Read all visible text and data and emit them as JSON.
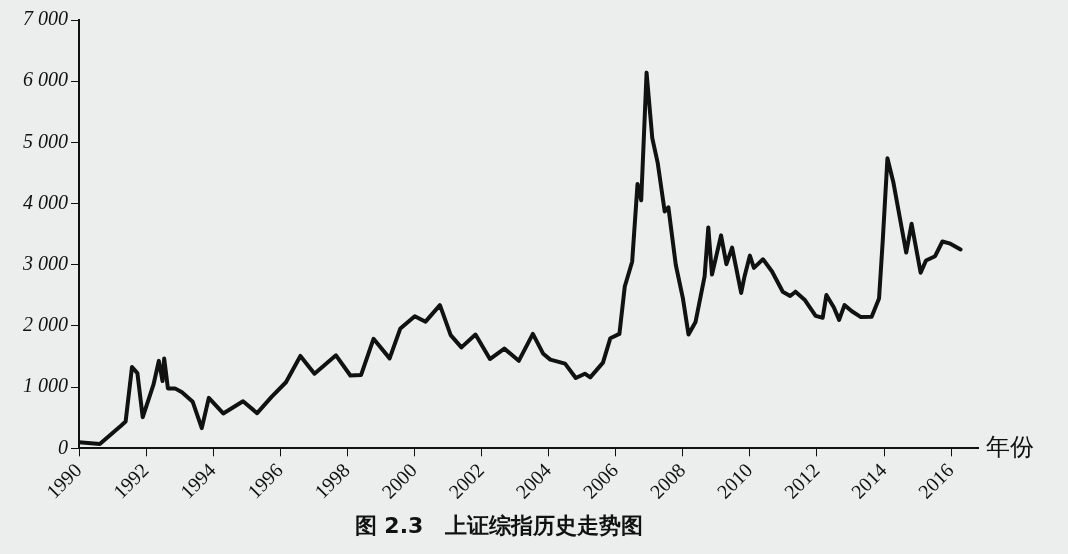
{
  "chart_data": {
    "type": "line",
    "title": "图 2.3　上证综指历史走势图",
    "xlabel": "年份",
    "x": [
      1990.0,
      1990.62,
      1991.26,
      1991.39,
      1991.58,
      1991.74,
      1991.9,
      1992.22,
      1992.38,
      1992.49,
      1992.54,
      1992.65,
      1992.86,
      1993.07,
      1993.39,
      1993.66,
      1993.87,
      1994.3,
      1994.89,
      1995.31,
      1995.74,
      1996.17,
      1996.6,
      1997.02,
      1997.66,
      1998.09,
      1998.41,
      1998.78,
      1999.26,
      1999.58,
      2000.01,
      2000.33,
      2000.76,
      2001.08,
      2001.4,
      2001.82,
      2002.25,
      2002.68,
      2003.11,
      2003.53,
      2003.84,
      2004.05,
      2004.49,
      2004.81,
      2005.08,
      2005.24,
      2005.62,
      2005.84,
      2006.11,
      2006.27,
      2006.49,
      2006.65,
      2006.76,
      2006.92,
      2007.09,
      2007.25,
      2007.46,
      2007.57,
      2007.79,
      2008.0,
      2008.17,
      2008.38,
      2008.65,
      2008.76,
      2008.87,
      2009.14,
      2009.3,
      2009.47,
      2009.74,
      2009.84,
      2010.0,
      2010.12,
      2010.39,
      2010.66,
      2010.98,
      2011.2,
      2011.36,
      2011.63,
      2011.96,
      2012.17,
      2012.28,
      2012.5,
      2012.66,
      2012.82,
      2013.04,
      2013.31,
      2013.63,
      2013.85,
      2013.96,
      2014.1,
      2014.28,
      2014.66,
      2014.82,
      2015.09,
      2015.25,
      2015.52,
      2015.74,
      2015.95,
      2016.28
    ],
    "series": [
      {
        "color": "#111111",
        "values": [
          100,
          70,
          375,
          440,
          1330,
          1230,
          510,
          1040,
          1430,
          1100,
          1470,
          980,
          980,
          915,
          760,
          330,
          825,
          570,
          770,
          575,
          840,
          1080,
          1510,
          1220,
          1520,
          1190,
          1200,
          1790,
          1470,
          1960,
          2160,
          2070,
          2340,
          1850,
          1650,
          1860,
          1460,
          1630,
          1430,
          1870,
          1545,
          1450,
          1385,
          1150,
          1220,
          1160,
          1400,
          1800,
          1870,
          2645,
          3050,
          4320,
          4055,
          6140,
          5070,
          4670,
          3870,
          3940,
          3000,
          2460,
          1860,
          2065,
          2810,
          3610,
          2840,
          3480,
          3010,
          3280,
          2540,
          2810,
          3150,
          2950,
          3090,
          2890,
          2560,
          2490,
          2560,
          2430,
          2165,
          2135,
          2505,
          2305,
          2100,
          2340,
          2240,
          2145,
          2150,
          2450,
          3390,
          4740,
          4340,
          3200,
          3670,
          2870,
          3070,
          3140,
          3380,
          3350,
          3250
        ]
      }
    ],
    "xlim": [
      1990,
      2016.8
    ],
    "xticks": [
      1990,
      1992,
      1994,
      1996,
      1998,
      2000,
      2002,
      2004,
      2006,
      2008,
      2010,
      2012,
      2014,
      2016
    ],
    "ylim": [
      0,
      7000
    ],
    "yticks": [
      0,
      {
        "value": 1000,
        "label": "1 000"
      },
      {
        "value": 2000,
        "label": "2 000"
      },
      {
        "value": 3000,
        "label": "3 000"
      },
      {
        "value": 4000,
        "label": "4 000"
      },
      {
        "value": 5000,
        "label": "5 000"
      },
      {
        "value": 6000,
        "label": "6 000"
      },
      {
        "value": 7000,
        "label": "7 000"
      }
    ],
    "grid": false,
    "legend": false,
    "marker": "none",
    "line_style": "solid"
  }
}
